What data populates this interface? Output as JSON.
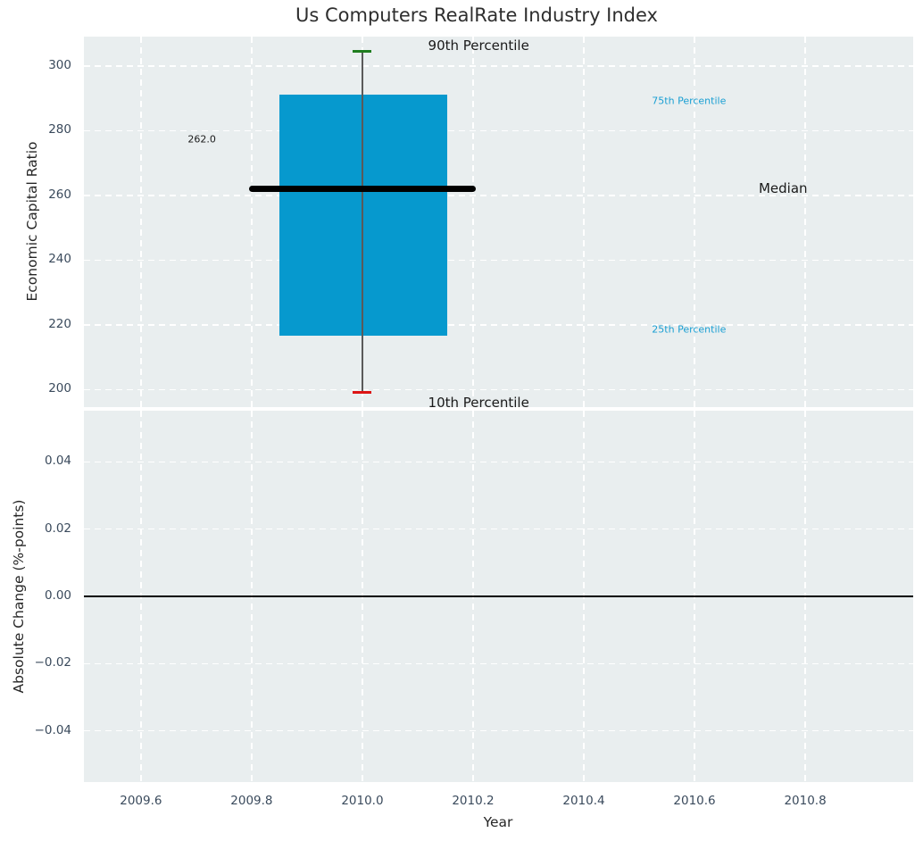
{
  "title": "Us Computers RealRate Industry Index",
  "colors": {
    "plot_bg": "#e9eeef",
    "grid": "#ffffff",
    "box_fill": "#0699ce",
    "median_line": "#000000",
    "whisker": "#5a5a5a",
    "cap_90th": "#1f7d1f",
    "cap_10th": "#dc1414",
    "percentile_label": "#1a9fd3",
    "text_dark": "#1a1a1a",
    "tick_label": "#3a4a5c",
    "zero_line": "#000000"
  },
  "x_axis": {
    "label": "Year",
    "ticks": [
      2009.6,
      2009.8,
      2010.0,
      2010.2,
      2010.4,
      2010.6,
      2010.8
    ],
    "tick_labels": [
      "2009.6",
      "2009.8",
      "2010.0",
      "2010.2",
      "2010.4",
      "2010.6",
      "2010.8"
    ],
    "xlim": [
      2009.497,
      2010.995
    ]
  },
  "chart_data": [
    {
      "type": "box",
      "title": "Us Computers RealRate Industry Index",
      "ylabel": "Economic Capital Ratio",
      "x_center": 2010.0,
      "box_x": [
        2009.85,
        2010.153
      ],
      "median_x": [
        2009.795,
        2010.205
      ],
      "percentiles": {
        "p90": 304.5,
        "p75": 291.2,
        "median": 262.0,
        "p25": 216.6,
        "p10": 199.2
      },
      "median_value_label": "262.0",
      "yticks": [
        200,
        220,
        240,
        260,
        280,
        300
      ],
      "ytick_labels": [
        "200",
        "220",
        "240",
        "260",
        "280",
        "300"
      ],
      "ylim": [
        194.6,
        309.1
      ],
      "grid": true,
      "legend_position": "none",
      "annotations": [
        {
          "text": "90th Percentile",
          "x": 2010.21,
          "y": 306.3,
          "style": "dark-large"
        },
        {
          "text": "75th Percentile",
          "x": 2010.59,
          "y": 289.1,
          "style": "cyan-small"
        },
        {
          "text": "Median",
          "x": 2010.76,
          "y": 262.3,
          "style": "dark-large"
        },
        {
          "text": "25th Percentile",
          "x": 2010.59,
          "y": 218.5,
          "style": "cyan-small"
        },
        {
          "text": "10th Percentile",
          "x": 2010.21,
          "y": 196.0,
          "style": "dark-large"
        },
        {
          "text": "262.0",
          "x": 2009.71,
          "y": 277.3,
          "style": "dark-small"
        }
      ]
    },
    {
      "type": "line",
      "ylabel": "Absolute Change (%-points)",
      "xlabel": "Year",
      "series": [],
      "zero_line": 0.0,
      "yticks": [
        0.04,
        0.02,
        0.0,
        -0.02,
        -0.04
      ],
      "ytick_labels": [
        "0.04",
        "0.02",
        "0.00",
        "−0.02",
        "−0.04"
      ],
      "ylim": [
        -0.0552,
        0.0552
      ],
      "grid": true
    }
  ]
}
